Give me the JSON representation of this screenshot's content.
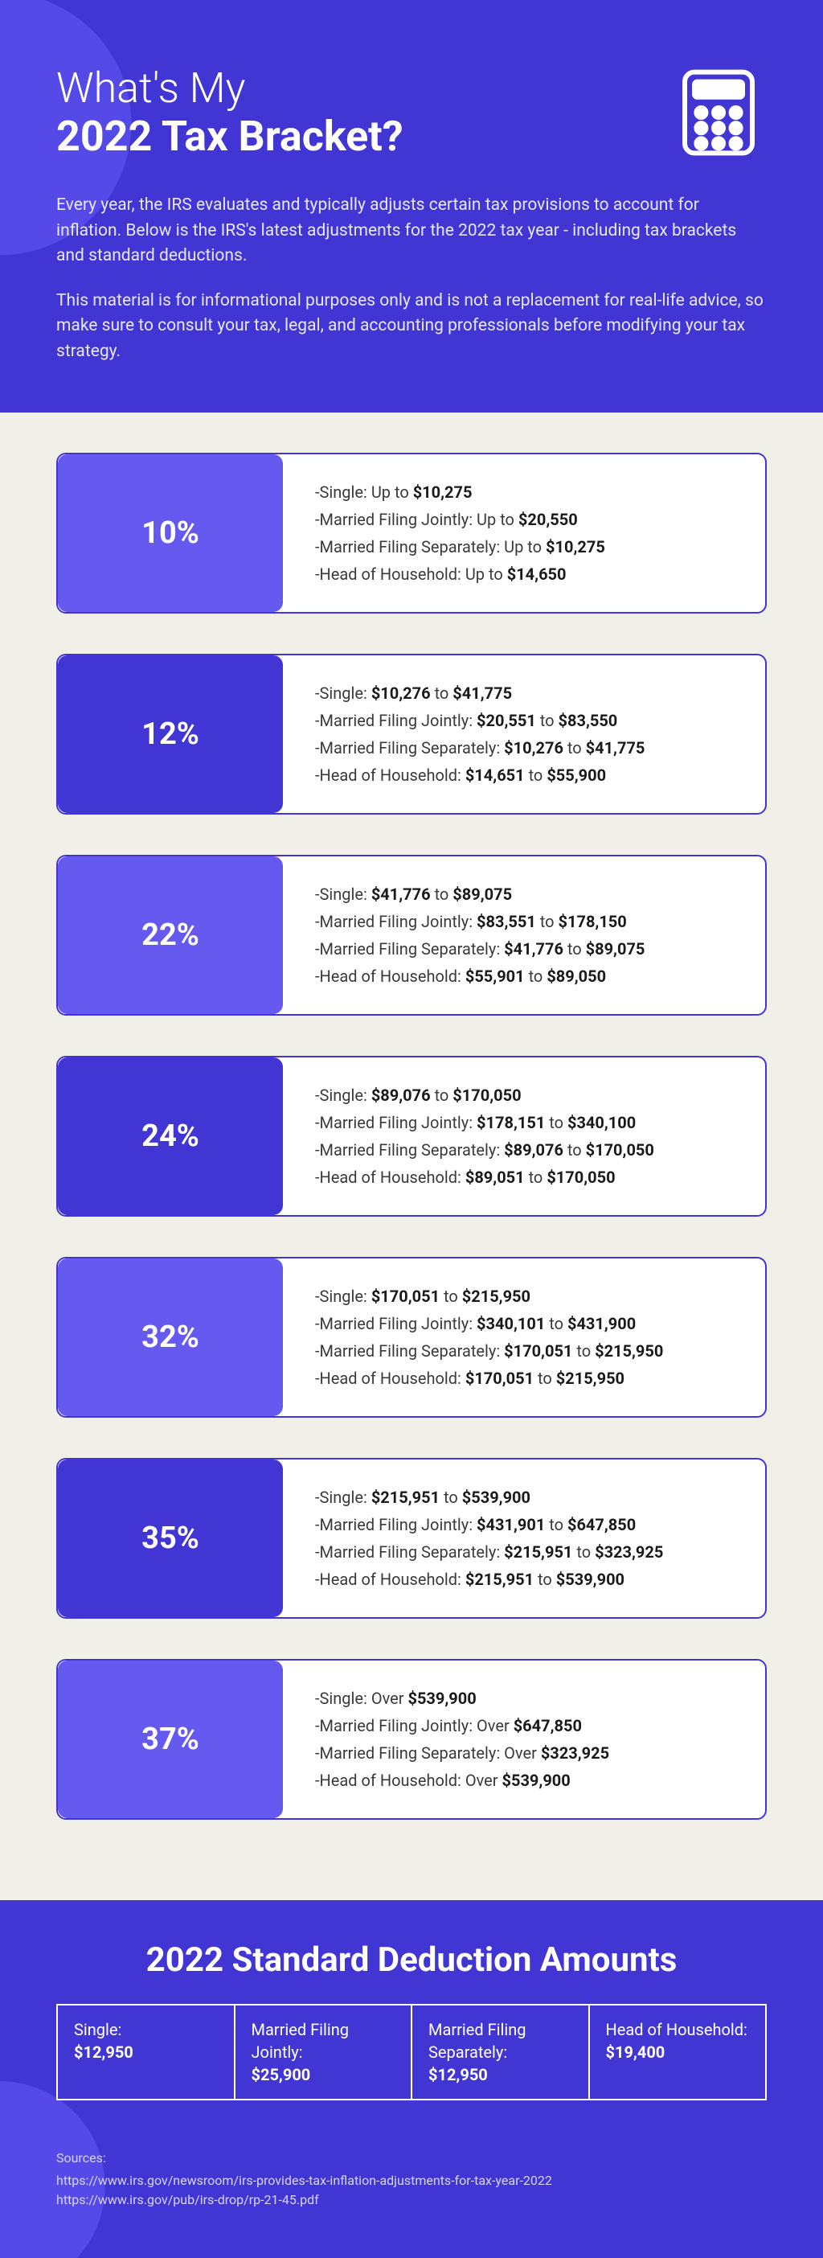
{
  "header": {
    "title_line1": "What's My",
    "title_line2": "2022 Tax Bracket?",
    "title_fontsize": 52,
    "intro_p1": "Every year, the IRS evaluates and typically adjusts certain tax provisions to account for inflation. Below is the IRS's latest adjustments for the 2022 tax year - including tax brackets and standard deductions.",
    "intro_p2": "This material is for informational purposes only and is not a replacement for real-life advice, so make sure to consult your tax, legal, and accounting professionals before modifying your tax strategy.",
    "bg_color": "#4135d4",
    "text_color": "#ffffff"
  },
  "brackets": [
    {
      "pct": "10%",
      "pct_bg": "#6559ef",
      "lines": [
        {
          "label": "Single",
          "pre": "Up to ",
          "v1": "$10,275",
          "mid": "",
          "v2": ""
        },
        {
          "label": "Married Filing Jointly",
          "pre": "Up to ",
          "v1": "$20,550",
          "mid": "",
          "v2": ""
        },
        {
          "label": "Married Filing Separately",
          "pre": "Up to ",
          "v1": "$10,275",
          "mid": "",
          "v2": ""
        },
        {
          "label": "Head of Household",
          "pre": "Up to ",
          "v1": "$14,650",
          "mid": "",
          "v2": ""
        }
      ]
    },
    {
      "pct": "12%",
      "pct_bg": "#4135d4",
      "lines": [
        {
          "label": "Single",
          "pre": "",
          "v1": "$10,276",
          "mid": " to ",
          "v2": "$41,775"
        },
        {
          "label": "Married Filing Jointly",
          "pre": "",
          "v1": "$20,551",
          "mid": " to ",
          "v2": "$83,550"
        },
        {
          "label": "Married Filing Separately",
          "pre": "",
          "v1": "$10,276",
          "mid": " to ",
          "v2": "$41,775"
        },
        {
          "label": "Head of Household",
          "pre": "",
          "v1": "$14,651",
          "mid": " to ",
          "v2": "$55,900"
        }
      ]
    },
    {
      "pct": "22%",
      "pct_bg": "#6559ef",
      "lines": [
        {
          "label": "Single",
          "pre": "",
          "v1": "$41,776",
          "mid": " to ",
          "v2": "$89,075"
        },
        {
          "label": "Married Filing Jointly",
          "pre": "",
          "v1": "$83,551",
          "mid": " to ",
          "v2": "$178,150"
        },
        {
          "label": "Married Filing Separately",
          "pre": "",
          "v1": "$41,776",
          "mid": " to ",
          "v2": "$89,075"
        },
        {
          "label": "Head of Household",
          "pre": "",
          "v1": "$55,901",
          "mid": " to ",
          "v2": "$89,050"
        }
      ]
    },
    {
      "pct": "24%",
      "pct_bg": "#4135d4",
      "lines": [
        {
          "label": "Single",
          "pre": "",
          "v1": "$89,076",
          "mid": " to ",
          "v2": "$170,050"
        },
        {
          "label": "Married Filing Jointly",
          "pre": "",
          "v1": "$178,151",
          "mid": " to ",
          "v2": "$340,100"
        },
        {
          "label": "Married Filing Separately",
          "pre": "",
          "v1": "$89,076",
          "mid": " to ",
          "v2": "$170,050"
        },
        {
          "label": "Head of Household",
          "pre": "",
          "v1": "$89,051",
          "mid": " to ",
          "v2": "$170,050"
        }
      ]
    },
    {
      "pct": "32%",
      "pct_bg": "#6559ef",
      "lines": [
        {
          "label": "Single",
          "pre": "",
          "v1": "$170,051",
          "mid": " to ",
          "v2": "$215,950"
        },
        {
          "label": "Married Filing Jointly",
          "pre": "",
          "v1": "$340,101",
          "mid": " to ",
          "v2": "$431,900"
        },
        {
          "label": "Married Filing Separately",
          "pre": "",
          "v1": "$170,051",
          "mid": " to ",
          "v2": "$215,950"
        },
        {
          "label": "Head of Household",
          "pre": "",
          "v1": "$170,051",
          "mid": " to ",
          "v2": "$215,950"
        }
      ]
    },
    {
      "pct": "35%",
      "pct_bg": "#4135d4",
      "lines": [
        {
          "label": "Single",
          "pre": "",
          "v1": "$215,951",
          "mid": " to ",
          "v2": "$539,900"
        },
        {
          "label": "Married Filing Jointly",
          "pre": "",
          "v1": "$431,901",
          "mid": " to ",
          "v2": "$647,850"
        },
        {
          "label": "Married Filing Separately",
          "pre": "",
          "v1": "$215,951",
          "mid": " to ",
          "v2": "$323,925"
        },
        {
          "label": "Head of Household",
          "pre": "",
          "v1": "$215,951",
          "mid": " to ",
          "v2": "$539,900"
        }
      ]
    },
    {
      "pct": "37%",
      "pct_bg": "#6559ef",
      "lines": [
        {
          "label": "Single",
          "pre": "Over ",
          "v1": "$539,900",
          "mid": "",
          "v2": ""
        },
        {
          "label": "Married Filing Jointly",
          "pre": "Over ",
          "v1": "$647,850",
          "mid": "",
          "v2": ""
        },
        {
          "label": "Married Filing Separately",
          "pre": "Over ",
          "v1": "$323,925",
          "mid": "",
          "v2": ""
        },
        {
          "label": "Head of Household",
          "pre": "Over ",
          "v1": "$539,900",
          "mid": "",
          "v2": ""
        }
      ]
    }
  ],
  "deductions": {
    "title": "2022 Standard Deduction Amounts",
    "cells": [
      {
        "label": "Single:",
        "value": "$12,950"
      },
      {
        "label": "Married Filing Jointly:",
        "value": "$25,900"
      },
      {
        "label": "Married Filing Separately:",
        "value": "$12,950"
      },
      {
        "label": "Head of Household:",
        "value": "$19,400"
      }
    ]
  },
  "sources": {
    "title": "Sources:",
    "lines": [
      "https://www.irs.gov/newsroom/irs-provides-tax-inflation-adjustments-for-tax-year-2022",
      "https://www.irs.gov/pub/irs-drop/rp-21-45.pdf"
    ]
  }
}
